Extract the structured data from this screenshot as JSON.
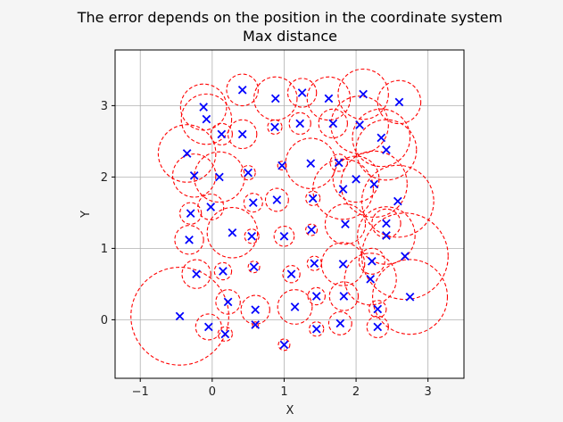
{
  "chart_data": {
    "type": "scatter",
    "title": "The error depends on the position in the coordinate system",
    "subtitle": "Max distance",
    "xlabel": "X",
    "ylabel": "Y",
    "xlim": [
      -1.35,
      3.5
    ],
    "ylim": [
      -0.82,
      3.78
    ],
    "xticks": [
      -1,
      0,
      1,
      2,
      3
    ],
    "yticks": [
      0,
      1,
      2,
      3
    ],
    "grid": true,
    "aspect": "equal",
    "marker_color": "#0000ff",
    "circle_color": "#ff0000",
    "points": [
      {
        "x": -0.45,
        "y": 0.05,
        "r": 0.68
      },
      {
        "x": -0.05,
        "y": -0.1,
        "r": 0.18
      },
      {
        "x": 0.18,
        "y": -0.2,
        "r": 0.1
      },
      {
        "x": 0.22,
        "y": 0.25,
        "r": 0.17
      },
      {
        "x": 0.6,
        "y": 0.14,
        "r": 0.2
      },
      {
        "x": 0.6,
        "y": -0.07,
        "r": 0.04
      },
      {
        "x": 1.0,
        "y": -0.35,
        "r": 0.08
      },
      {
        "x": 1.15,
        "y": 0.18,
        "r": 0.24
      },
      {
        "x": 1.45,
        "y": -0.13,
        "r": 0.1
      },
      {
        "x": 1.78,
        "y": -0.05,
        "r": 0.16
      },
      {
        "x": 2.3,
        "y": -0.1,
        "r": 0.15
      },
      {
        "x": 2.3,
        "y": 0.15,
        "r": 0.12
      },
      {
        "x": 1.45,
        "y": 0.33,
        "r": 0.12
      },
      {
        "x": 1.83,
        "y": 0.33,
        "r": 0.2
      },
      {
        "x": 2.75,
        "y": 0.32,
        "r": 0.52
      },
      {
        "x": -0.22,
        "y": 0.64,
        "r": 0.2
      },
      {
        "x": 0.15,
        "y": 0.68,
        "r": 0.12
      },
      {
        "x": 0.58,
        "y": 0.74,
        "r": 0.08
      },
      {
        "x": 1.1,
        "y": 0.64,
        "r": 0.12
      },
      {
        "x": 1.42,
        "y": 0.79,
        "r": 0.1
      },
      {
        "x": 1.82,
        "y": 0.78,
        "r": 0.3
      },
      {
        "x": 2.2,
        "y": 0.57,
        "r": 0.36
      },
      {
        "x": 2.22,
        "y": 0.82,
        "r": 0.18
      },
      {
        "x": 2.68,
        "y": 0.89,
        "r": 0.6
      },
      {
        "x": -0.32,
        "y": 1.12,
        "r": 0.2
      },
      {
        "x": -0.3,
        "y": 1.49,
        "r": 0.15
      },
      {
        "x": 0.28,
        "y": 1.22,
        "r": 0.35
      },
      {
        "x": 0.55,
        "y": 1.17,
        "r": 0.1
      },
      {
        "x": 1.0,
        "y": 1.17,
        "r": 0.14
      },
      {
        "x": 1.38,
        "y": 1.26,
        "r": 0.08
      },
      {
        "x": 1.85,
        "y": 1.34,
        "r": 0.28
      },
      {
        "x": 2.42,
        "y": 1.18,
        "r": 0.4
      },
      {
        "x": 2.42,
        "y": 1.35,
        "r": 0.2
      },
      {
        "x": -0.02,
        "y": 1.58,
        "r": 0.18
      },
      {
        "x": 0.57,
        "y": 1.64,
        "r": 0.13
      },
      {
        "x": 0.9,
        "y": 1.68,
        "r": 0.16
      },
      {
        "x": 1.4,
        "y": 1.7,
        "r": 0.1
      },
      {
        "x": 1.82,
        "y": 1.83,
        "r": 0.42
      },
      {
        "x": 2.0,
        "y": 1.97,
        "r": 0.32
      },
      {
        "x": 2.58,
        "y": 1.66,
        "r": 0.5
      },
      {
        "x": -0.35,
        "y": 2.33,
        "r": 0.4
      },
      {
        "x": -0.25,
        "y": 2.02,
        "r": 0.3
      },
      {
        "x": 0.1,
        "y": 2.0,
        "r": 0.35
      },
      {
        "x": 0.5,
        "y": 2.06,
        "r": 0.1
      },
      {
        "x": 0.97,
        "y": 2.16,
        "r": 0.06
      },
      {
        "x": 1.37,
        "y": 2.19,
        "r": 0.35
      },
      {
        "x": 1.76,
        "y": 2.2,
        "r": 0.12
      },
      {
        "x": 2.25,
        "y": 1.9,
        "r": 0.46
      },
      {
        "x": 2.42,
        "y": 2.38,
        "r": 0.42
      },
      {
        "x": -0.12,
        "y": 2.98,
        "r": 0.32
      },
      {
        "x": -0.08,
        "y": 2.81,
        "r": 0.35
      },
      {
        "x": 0.13,
        "y": 2.6,
        "r": 0.15
      },
      {
        "x": 0.42,
        "y": 2.6,
        "r": 0.2
      },
      {
        "x": 0.42,
        "y": 3.22,
        "r": 0.22
      },
      {
        "x": 0.87,
        "y": 2.7,
        "r": 0.1
      },
      {
        "x": 0.88,
        "y": 3.1,
        "r": 0.3
      },
      {
        "x": 1.22,
        "y": 2.75,
        "r": 0.15
      },
      {
        "x": 1.25,
        "y": 3.18,
        "r": 0.2
      },
      {
        "x": 1.62,
        "y": 3.1,
        "r": 0.3
      },
      {
        "x": 1.68,
        "y": 2.75,
        "r": 0.2
      },
      {
        "x": 2.05,
        "y": 2.73,
        "r": 0.4
      },
      {
        "x": 2.1,
        "y": 3.16,
        "r": 0.35
      },
      {
        "x": 2.35,
        "y": 2.55,
        "r": 0.4
      },
      {
        "x": 2.6,
        "y": 3.05,
        "r": 0.3
      }
    ]
  }
}
